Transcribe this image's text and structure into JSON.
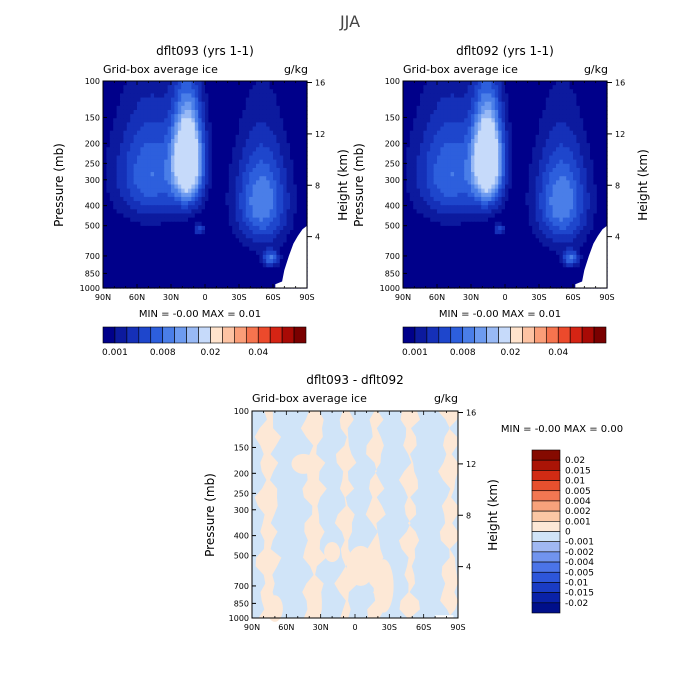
{
  "title": "JJA",
  "colors": {
    "abs_levels": [
      "#00008a",
      "#0c1a9e",
      "#1530b8",
      "#1e46cc",
      "#2d5fdd",
      "#4a7ee8",
      "#6d9bf0",
      "#98b9f5",
      "#c6dafa",
      "#ffe3cc",
      "#fdc3a3",
      "#fb9e78",
      "#f6744e",
      "#ec4a2c",
      "#d52414",
      "#a80a05",
      "#7a0000"
    ],
    "diff_levels": [
      "#000f8a",
      "#0a22a8",
      "#1a3cc4",
      "#2d56da",
      "#4b74e8",
      "#7194ee",
      "#a0b8f2",
      "#d0e4f8",
      "#fde8d6",
      "#fbc7a4",
      "#f7a27b",
      "#f27752",
      "#e7502e",
      "#d12b14",
      "#aa1406",
      "#850a00"
    ],
    "continent": "#ffffff",
    "line": "#000000"
  },
  "chart_data": [
    {
      "type": "heatmap",
      "panel": "left",
      "title": "dflt093 (yrs 1-1)",
      "subtitle_left": "Grid-box average ice",
      "subtitle_right": "g/kg",
      "ylabel": "Pressure (mb)",
      "ylabel_right": "Height (km)",
      "x_ticks": [
        "90N",
        "60N",
        "30N",
        "0",
        "30S",
        "60S",
        "90S"
      ],
      "y_ticks": [
        "100",
        "150",
        "200",
        "250",
        "300",
        "400",
        "500",
        "700",
        "850",
        "1000"
      ],
      "y_ticks_right": [
        "16",
        "12",
        "8",
        "4"
      ],
      "min_max": "MIN =   -0.00   MAX =   0.01",
      "colorbar_labels": [
        "0.001",
        "0.008",
        "0.02",
        "0.04"
      ],
      "features": [
        {
          "lat": 15,
          "p": 240,
          "peak": 0.012,
          "sx": 9,
          "sp": 90
        },
        {
          "lat": 48,
          "p": 280,
          "peak": 0.005,
          "sx": 22,
          "sp": 120
        },
        {
          "lat": -50,
          "p": 380,
          "peak": 0.006,
          "sx": 16,
          "sp": 150
        },
        {
          "lat": -58,
          "p": 720,
          "peak": 0.005,
          "sx": 5,
          "sp": 45
        },
        {
          "lat": 5,
          "p": 520,
          "peak": 0.004,
          "sx": 3,
          "sp": 20
        }
      ]
    },
    {
      "type": "heatmap",
      "panel": "right",
      "title": "dflt092 (yrs 1-1)",
      "subtitle_left": "Grid-box average ice",
      "subtitle_right": "g/kg",
      "ylabel": "Pressure (mb)",
      "ylabel_right": "Height (km)",
      "x_ticks": [
        "90N",
        "60N",
        "30N",
        "0",
        "30S",
        "60S",
        "90S"
      ],
      "y_ticks": [
        "100",
        "150",
        "200",
        "250",
        "300",
        "400",
        "500",
        "700",
        "850",
        "1000"
      ],
      "y_ticks_right": [
        "16",
        "12",
        "8",
        "4"
      ],
      "min_max": "MIN =   -0.00   MAX =   0.01",
      "colorbar_labels": [
        "0.001",
        "0.008",
        "0.02",
        "0.04"
      ],
      "features": [
        {
          "lat": 15,
          "p": 240,
          "peak": 0.012,
          "sx": 9,
          "sp": 90
        },
        {
          "lat": 48,
          "p": 280,
          "peak": 0.005,
          "sx": 22,
          "sp": 120
        },
        {
          "lat": -50,
          "p": 380,
          "peak": 0.006,
          "sx": 16,
          "sp": 150
        },
        {
          "lat": -58,
          "p": 720,
          "peak": 0.005,
          "sx": 5,
          "sp": 45
        },
        {
          "lat": 5,
          "p": 520,
          "peak": 0.004,
          "sx": 3,
          "sp": 20
        }
      ]
    },
    {
      "type": "heatmap",
      "panel": "diff",
      "title": "dflt093 - dflt092",
      "subtitle_left": "Grid-box average ice",
      "subtitle_right": "g/kg",
      "ylabel": "Pressure (mb)",
      "ylabel_right": "Height (km)",
      "x_ticks": [
        "90N",
        "60N",
        "30N",
        "0",
        "30S",
        "60S",
        "90S"
      ],
      "y_ticks": [
        "100",
        "150",
        "200",
        "250",
        "300",
        "400",
        "500",
        "700",
        "850",
        "1000"
      ],
      "y_ticks_right": [
        "16",
        "12",
        "8",
        "4"
      ],
      "min_max": "MIN =   -0.00   MAX =    0.00",
      "colorbar_labels": [
        "0.02",
        "0.015",
        "0.01",
        "0.005",
        "0.004",
        "0.002",
        "0.001",
        "0",
        "-0.001",
        "-0.002",
        "-0.004",
        "-0.005",
        "-0.01",
        "-0.015",
        "-0.02"
      ],
      "positive_bands_lat": [
        [
          82,
          70
        ],
        [
          42,
          30
        ],
        [
          12,
          4
        ],
        [
          -14,
          -22
        ],
        [
          -44,
          -52
        ],
        [
          -78,
          -88
        ]
      ]
    }
  ]
}
